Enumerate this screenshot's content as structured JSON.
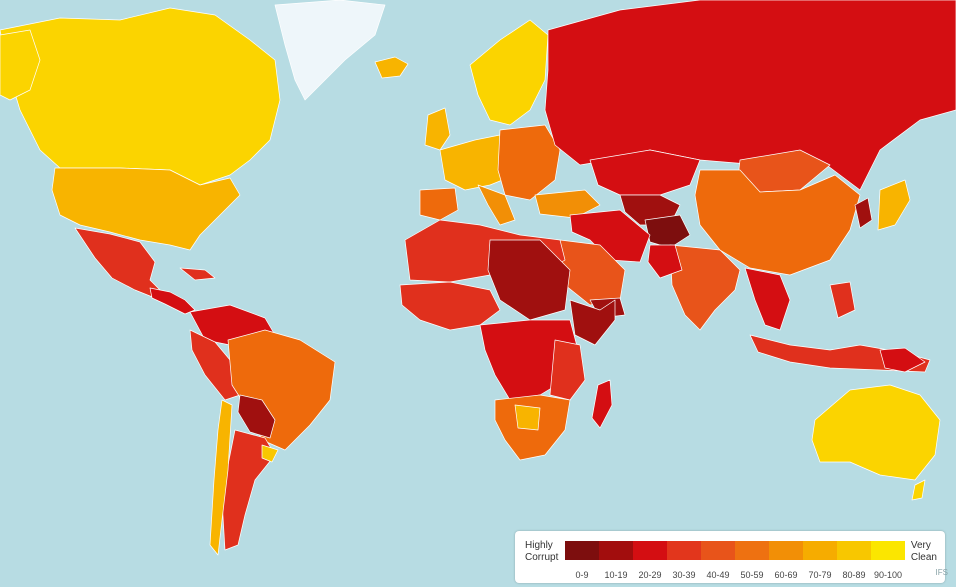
{
  "legend": {
    "left_label": "Highly\nCorrupt",
    "right_label": "Very\nClean",
    "ranges": [
      "0-9",
      "10-19",
      "20-29",
      "30-39",
      "40-49",
      "50-59",
      "60-69",
      "70-79",
      "80-89",
      "90-100"
    ],
    "colors": [
      "#7d0e0e",
      "#a20d0d",
      "#d40e12",
      "#e2361c",
      "#e8541a",
      "#ee7111",
      "#f28f06",
      "#f6ac00",
      "#f8c700",
      "#fbe600"
    ]
  },
  "credit": "IFS",
  "colors": {
    "ocean": "#b7dce3",
    "greenland": "#eef6fa",
    "clean": "#fbd400",
    "fairly_clean": "#f8b400",
    "mid": "#ee6a0c",
    "corrupt": "#e0301d",
    "very_corrupt": "#d40e12",
    "highly_corrupt": "#a0100f"
  }
}
